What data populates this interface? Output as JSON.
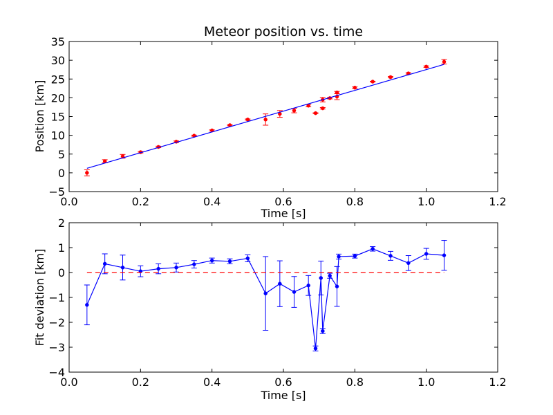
{
  "chart_data": [
    {
      "type": "scatter",
      "title": "Meteor position vs. time",
      "xlabel": "Time [s]",
      "ylabel": "Position [km]",
      "xlim": [
        0.0,
        1.2
      ],
      "ylim": [
        -5,
        35
      ],
      "xticks": [
        "0.0",
        "0.2",
        "0.4",
        "0.6",
        "0.8",
        "1.0",
        "1.2"
      ],
      "yticks": [
        "35",
        "30",
        "25",
        "20",
        "15",
        "10",
        "5",
        "0",
        "−5"
      ],
      "xtick_values": [
        0.0,
        0.2,
        0.4,
        0.6,
        0.8,
        1.0,
        1.2
      ],
      "ytick_values": [
        35,
        30,
        25,
        20,
        15,
        10,
        5,
        0,
        -5
      ],
      "grid": false,
      "series": [
        {
          "kind": "errorbar-points",
          "color": "#ff0000",
          "x": [
            0.05,
            0.1,
            0.15,
            0.2,
            0.25,
            0.3,
            0.35,
            0.4,
            0.45,
            0.5,
            0.55,
            0.59,
            0.63,
            0.67,
            0.69,
            0.71,
            0.71,
            0.73,
            0.75,
            0.75,
            0.8,
            0.85,
            0.9,
            0.95,
            1.0,
            1.05
          ],
          "y": [
            0.0,
            3.1,
            4.4,
            5.5,
            6.9,
            8.3,
            9.9,
            11.3,
            12.7,
            14.2,
            14.2,
            15.7,
            16.6,
            17.9,
            15.9,
            17.2,
            19.5,
            19.9,
            20.3,
            21.4,
            22.7,
            24.3,
            25.5,
            26.5,
            28.3,
            29.6
          ],
          "yerr": [
            0.8,
            0.4,
            0.5,
            0.2,
            0.2,
            0.2,
            0.15,
            0.15,
            0.15,
            0.15,
            1.5,
            0.9,
            0.6,
            0.3,
            0.1,
            0.2,
            0.6,
            0.2,
            0.8,
            0.3,
            0.2,
            0.1,
            0.2,
            0.2,
            0.2,
            0.6
          ]
        },
        {
          "kind": "line",
          "color": "#0000ff",
          "x": [
            0.05,
            1.05
          ],
          "y": [
            1.2,
            28.9
          ]
        }
      ]
    },
    {
      "type": "line",
      "title": "",
      "xlabel": "Time [s]",
      "ylabel": "Fit deviation [km]",
      "xlim": [
        0.0,
        1.2
      ],
      "ylim": [
        -4,
        2
      ],
      "xticks": [
        "0.0",
        "0.2",
        "0.4",
        "0.6",
        "0.8",
        "1.0",
        "1.2"
      ],
      "yticks": [
        "2",
        "1",
        "0",
        "−1",
        "−2",
        "−3",
        "−4"
      ],
      "xtick_values": [
        0.0,
        0.2,
        0.4,
        0.6,
        0.8,
        1.0,
        1.2
      ],
      "ytick_values": [
        2,
        1,
        0,
        -1,
        -2,
        -3,
        -4
      ],
      "grid": false,
      "series": [
        {
          "kind": "errorbar-line",
          "color": "#0000ff",
          "x": [
            0.05,
            0.1,
            0.15,
            0.2,
            0.25,
            0.3,
            0.35,
            0.4,
            0.45,
            0.5,
            0.55,
            0.59,
            0.63,
            0.67,
            0.69,
            0.705,
            0.71,
            0.73,
            0.75,
            0.755,
            0.8,
            0.85,
            0.9,
            0.95,
            1.0,
            1.05
          ],
          "y": [
            -1.3,
            0.35,
            0.2,
            0.05,
            0.15,
            0.2,
            0.33,
            0.48,
            0.45,
            0.57,
            -0.84,
            -0.45,
            -0.78,
            -0.52,
            -3.05,
            -0.22,
            -2.35,
            -0.13,
            -0.56,
            0.64,
            0.66,
            0.95,
            0.67,
            0.38,
            0.75,
            0.69
          ],
          "yerr": [
            0.8,
            0.4,
            0.5,
            0.22,
            0.2,
            0.18,
            0.15,
            0.1,
            0.1,
            0.14,
            1.48,
            0.92,
            0.62,
            0.4,
            0.1,
            0.68,
            0.1,
            0.1,
            0.8,
            0.1,
            0.08,
            0.09,
            0.18,
            0.3,
            0.22,
            0.6
          ]
        },
        {
          "kind": "dashed-line",
          "color": "#ff0000",
          "x": [
            0.05,
            1.05
          ],
          "y": [
            0,
            0
          ]
        }
      ]
    }
  ]
}
